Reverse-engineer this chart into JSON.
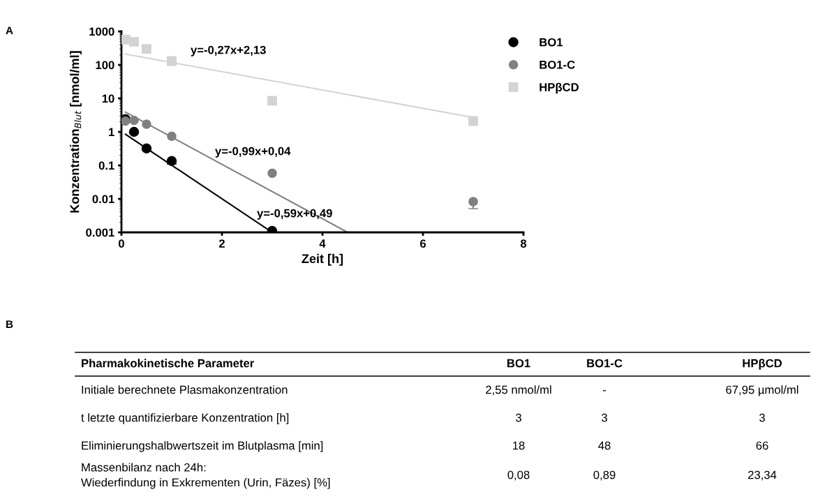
{
  "chart_data": [
    {
      "type": "scatter",
      "xlabel": "Zeit [h]",
      "ylabel": "Konzentration$_{Blut}$ [nmol/ml]",
      "log": "y",
      "xlim": [
        0,
        8
      ],
      "xticks": [
        0,
        2,
        4,
        6,
        8
      ],
      "ylim": [
        0.001,
        1000
      ],
      "yticks": [
        0.001,
        0.01,
        0.1,
        1,
        10,
        100,
        1000
      ],
      "grid": false,
      "legend": "top right",
      "series": [
        {
          "name": "BO1",
          "color": "#000000",
          "marker": "circle",
          "x": [
            0.08,
            0.25,
            0.5,
            1,
            3
          ],
          "values": [
            2.4,
            1.0,
            0.32,
            0.135,
            0.0011
          ],
          "errors": [
            null,
            null,
            null,
            [
              0.11,
              0.135
            ],
            null
          ]
        },
        {
          "name": "BO1-C",
          "color": "#808080",
          "marker": "circle",
          "x": [
            0.08,
            0.25,
            0.5,
            1,
            3,
            7
          ],
          "values": [
            2.1,
            2.2,
            1.7,
            0.74,
            0.058,
            0.0083
          ],
          "errors": [
            null,
            null,
            null,
            null,
            null,
            [
              0.0051,
              0.0083
            ]
          ]
        },
        {
          "name": "HPβCD",
          "color": "#d3d3d3",
          "marker": "square",
          "x": [
            0.08,
            0.25,
            0.5,
            1,
            3,
            7
          ],
          "values": [
            570,
            490,
            300,
            130,
            8.5,
            2.1
          ]
        },
        {
          "type": "line",
          "color": "#000000",
          "marker": "none",
          "x": [
            0.08,
            3
          ],
          "values": [
            0.85,
            0.001
          ]
        },
        {
          "type": "line",
          "color": "#808080",
          "marker": "none",
          "x": [
            0.08,
            4.5
          ],
          "values": [
            3.9,
            0.001
          ]
        },
        {
          "type": "line",
          "color": "#d3d3d3",
          "marker": "none",
          "x": [
            0.08,
            7
          ],
          "values": [
            210,
            2.7
          ]
        }
      ],
      "annotations": [
        "A",
        "y=-0,27x+2,13",
        "y=-0,99x+0,04",
        "y=-0,59x+0,49"
      ]
    },
    {
      "type": "other",
      "title": "B",
      "annotations": [
        "Pharmakokinetische Parameter",
        "BO1",
        "BO1-C",
        "HPβCD",
        "Initiale berechnete Plasmakonzentration",
        "2,55 nmol/ml",
        "-",
        "67,95 µmol/ml",
        "t letzte quantifizierbare Konzentration [h]",
        "3",
        "3",
        "3",
        "Eliminierungshalbwertszeit im Blutplasma [min]",
        "18",
        "48",
        "66",
        "Massenbilanz nach 24h:\nWiederfindung in Exkrementen (Urin, Fäzes) [%]",
        "0,08",
        "0,89",
        "23,34"
      ]
    }
  ]
}
